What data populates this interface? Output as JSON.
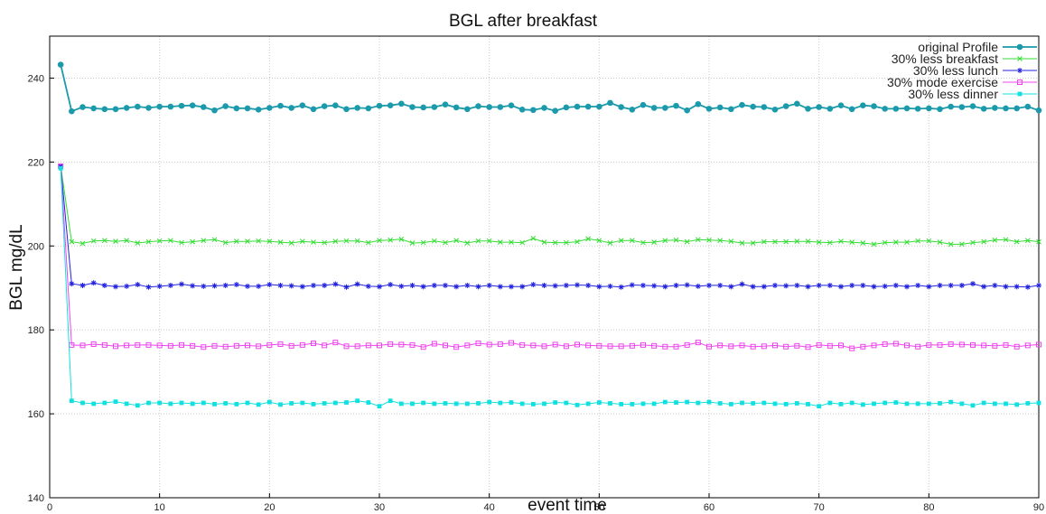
{
  "chart_data": {
    "type": "line",
    "title": "BGL after breakfast",
    "xlabel": "event time",
    "ylabel": "BGL mg/dL",
    "xlim": [
      0,
      90
    ],
    "ylim": [
      140,
      250
    ],
    "xticks": [
      0,
      10,
      20,
      30,
      40,
      50,
      60,
      70,
      80,
      90
    ],
    "yticks": [
      140,
      160,
      180,
      200,
      220,
      240
    ],
    "grid": true,
    "legend_position": "top-right",
    "series": [
      {
        "name": "original Profile",
        "color": "#1a9aaa",
        "marker": "circle",
        "x": [
          1,
          2,
          3,
          4,
          5,
          6,
          7,
          8,
          9,
          10,
          11,
          12,
          13,
          14,
          15,
          16,
          17,
          18,
          19,
          20,
          21,
          22,
          23,
          24,
          25,
          26,
          27,
          28,
          29,
          30,
          31,
          32,
          33,
          34,
          35,
          36,
          37,
          38,
          39,
          40,
          41,
          42,
          43,
          44,
          45,
          46,
          47,
          48,
          49,
          50,
          51,
          52,
          53,
          54,
          55,
          56,
          57,
          58,
          59,
          60,
          61,
          62,
          63,
          64,
          65,
          66,
          67,
          68,
          69,
          70,
          71,
          72,
          73,
          74,
          75,
          76,
          77,
          78,
          79,
          80,
          81,
          82,
          83,
          84,
          85,
          86,
          87,
          88,
          89,
          90
        ],
        "values": [
          243.2,
          232.1,
          233.1,
          232.8,
          232.6,
          232.6,
          232.9,
          233.2,
          232.9,
          233.2,
          233.2,
          233.4,
          233.5,
          233.1,
          232.3,
          233.3,
          232.8,
          232.8,
          232.5,
          232.9,
          233.4,
          232.9,
          233.5,
          232.6,
          233.3,
          233.5,
          232.6,
          232.9,
          232.8,
          233.4,
          233.5,
          233.9,
          233.1,
          233.0,
          233.1,
          233.7,
          233.0,
          232.6,
          233.3,
          233.1,
          233.1,
          233.5,
          232.5,
          232.4,
          232.9,
          232.2,
          233.0,
          233.2,
          233.2,
          233.2,
          234.1,
          233.1,
          232.5,
          233.6,
          232.9,
          232.9,
          233.4,
          232.3,
          233.8,
          232.7,
          233.0,
          232.6,
          233.6,
          233.2,
          233.1,
          232.5,
          233.3,
          233.9,
          232.7,
          233.1,
          232.7,
          233.5,
          232.6,
          233.5,
          233.3,
          232.7,
          232.7,
          232.8,
          232.7,
          232.8,
          232.6,
          233.2,
          233.1,
          233.3,
          232.7,
          232.9,
          232.8,
          232.8,
          233.2,
          232.3
        ]
      },
      {
        "name": "30% less breakfast",
        "color": "#33dd33",
        "marker": "x",
        "x": [
          1,
          2,
          3,
          4,
          5,
          6,
          7,
          8,
          9,
          10,
          11,
          12,
          13,
          14,
          15,
          16,
          17,
          18,
          19,
          20,
          21,
          22,
          23,
          24,
          25,
          26,
          27,
          28,
          29,
          30,
          31,
          32,
          33,
          34,
          35,
          36,
          37,
          38,
          39,
          40,
          41,
          42,
          43,
          44,
          45,
          46,
          47,
          48,
          49,
          50,
          51,
          52,
          53,
          54,
          55,
          56,
          57,
          58,
          59,
          60,
          61,
          62,
          63,
          64,
          65,
          66,
          67,
          68,
          69,
          70,
          71,
          72,
          73,
          74,
          75,
          76,
          77,
          78,
          79,
          80,
          81,
          82,
          83,
          84,
          85,
          86,
          87,
          88,
          89,
          90
        ],
        "values": [
          219.0,
          201.0,
          200.6,
          201.2,
          201.3,
          201.1,
          201.3,
          200.7,
          201.0,
          201.2,
          201.3,
          200.8,
          201.0,
          201.3,
          201.5,
          200.8,
          201.1,
          201.1,
          201.2,
          201.1,
          200.9,
          200.7,
          201.1,
          200.9,
          200.8,
          201.1,
          201.2,
          201.2,
          200.8,
          201.3,
          201.4,
          201.6,
          200.7,
          200.8,
          201.2,
          200.8,
          201.3,
          200.7,
          201.2,
          201.2,
          200.9,
          200.9,
          200.8,
          201.8,
          200.9,
          200.8,
          200.8,
          201.0,
          201.7,
          201.3,
          200.7,
          201.3,
          201.3,
          200.8,
          200.9,
          201.3,
          201.4,
          201.0,
          201.5,
          201.4,
          201.3,
          201.1,
          200.7,
          200.7,
          201.0,
          201.0,
          201.0,
          201.1,
          201.1,
          200.9,
          200.8,
          201.1,
          200.9,
          200.7,
          200.4,
          200.8,
          200.9,
          200.9,
          201.2,
          201.2,
          200.9,
          200.4,
          200.4,
          200.8,
          201.0,
          201.4,
          201.5,
          201.0,
          201.3,
          201.0
        ]
      },
      {
        "name": "30% less lunch",
        "color": "#2222dd",
        "marker": "star",
        "x": [
          1,
          2,
          3,
          4,
          5,
          6,
          7,
          8,
          9,
          10,
          11,
          12,
          13,
          14,
          15,
          16,
          17,
          18,
          19,
          20,
          21,
          22,
          23,
          24,
          25,
          26,
          27,
          28,
          29,
          30,
          31,
          32,
          33,
          34,
          35,
          36,
          37,
          38,
          39,
          40,
          41,
          42,
          43,
          44,
          45,
          46,
          47,
          48,
          49,
          50,
          51,
          52,
          53,
          54,
          55,
          56,
          57,
          58,
          59,
          60,
          61,
          62,
          63,
          64,
          65,
          66,
          67,
          68,
          69,
          70,
          71,
          72,
          73,
          74,
          75,
          76,
          77,
          78,
          79,
          80,
          81,
          82,
          83,
          84,
          85,
          86,
          87,
          88,
          89,
          90
        ],
        "values": [
          219.0,
          191.0,
          190.6,
          191.2,
          190.6,
          190.3,
          190.4,
          190.8,
          190.2,
          190.4,
          190.6,
          190.9,
          190.5,
          190.4,
          190.5,
          190.6,
          190.8,
          190.4,
          190.4,
          190.8,
          190.6,
          190.5,
          190.3,
          190.6,
          190.6,
          190.9,
          190.2,
          190.9,
          190.4,
          190.3,
          190.8,
          190.4,
          190.6,
          190.3,
          190.6,
          190.6,
          190.3,
          190.6,
          190.3,
          190.6,
          190.3,
          190.3,
          190.3,
          190.8,
          190.6,
          190.5,
          190.6,
          190.7,
          190.6,
          190.3,
          190.4,
          190.2,
          190.7,
          190.6,
          190.5,
          190.3,
          190.6,
          190.7,
          190.4,
          190.6,
          190.6,
          190.3,
          190.9,
          190.3,
          190.3,
          190.6,
          190.5,
          190.6,
          190.3,
          190.6,
          190.6,
          190.3,
          190.6,
          190.6,
          190.3,
          190.4,
          190.6,
          190.3,
          190.6,
          190.3,
          190.6,
          190.6,
          190.6,
          191.0,
          190.3,
          190.6,
          190.3,
          190.3,
          190.2,
          190.6
        ]
      },
      {
        "name": "30% mode exercise",
        "color": "#ee44ee",
        "marker": "square",
        "x": [
          1,
          2,
          3,
          4,
          5,
          6,
          7,
          8,
          9,
          10,
          11,
          12,
          13,
          14,
          15,
          16,
          17,
          18,
          19,
          20,
          21,
          22,
          23,
          24,
          25,
          26,
          27,
          28,
          29,
          30,
          31,
          32,
          33,
          34,
          35,
          36,
          37,
          38,
          39,
          40,
          41,
          42,
          43,
          44,
          45,
          46,
          47,
          48,
          49,
          50,
          51,
          52,
          53,
          54,
          55,
          56,
          57,
          58,
          59,
          60,
          61,
          62,
          63,
          64,
          65,
          66,
          67,
          68,
          69,
          70,
          71,
          72,
          73,
          74,
          75,
          76,
          77,
          78,
          79,
          80,
          81,
          82,
          83,
          84,
          85,
          86,
          87,
          88,
          89,
          90
        ],
        "values": [
          219.0,
          176.4,
          176.3,
          176.6,
          176.4,
          176.1,
          176.3,
          176.4,
          176.4,
          176.3,
          176.2,
          176.4,
          176.2,
          175.9,
          176.2,
          176.0,
          176.2,
          176.3,
          176.1,
          176.4,
          176.6,
          176.2,
          176.4,
          176.8,
          176.3,
          177.0,
          176.1,
          176.1,
          176.3,
          176.3,
          176.6,
          176.5,
          176.4,
          175.9,
          176.7,
          176.3,
          175.9,
          176.3,
          176.8,
          176.5,
          176.6,
          176.9,
          176.4,
          176.3,
          176.1,
          176.5,
          176.1,
          176.5,
          176.3,
          176.2,
          176.1,
          176.1,
          176.2,
          176.4,
          176.2,
          176.0,
          176.0,
          176.4,
          177.0,
          176.0,
          176.3,
          176.1,
          176.3,
          176.0,
          176.1,
          176.3,
          176.0,
          176.2,
          175.9,
          176.4,
          176.2,
          176.3,
          175.6,
          176.0,
          176.3,
          176.6,
          176.7,
          176.3,
          176.0,
          176.4,
          176.4,
          176.6,
          176.5,
          176.4,
          176.3,
          176.2,
          176.4,
          176.0,
          176.3,
          176.5
        ]
      },
      {
        "name": "30% less dinner",
        "color": "#11e0e0",
        "marker": "filled-square",
        "x": [
          1,
          2,
          3,
          4,
          5,
          6,
          7,
          8,
          9,
          10,
          11,
          12,
          13,
          14,
          15,
          16,
          17,
          18,
          19,
          20,
          21,
          22,
          23,
          24,
          25,
          26,
          27,
          28,
          29,
          30,
          31,
          32,
          33,
          34,
          35,
          36,
          37,
          38,
          39,
          40,
          41,
          42,
          43,
          44,
          45,
          46,
          47,
          48,
          49,
          50,
          51,
          52,
          53,
          54,
          55,
          56,
          57,
          58,
          59,
          60,
          61,
          62,
          63,
          64,
          65,
          66,
          67,
          68,
          69,
          70,
          71,
          72,
          73,
          74,
          75,
          76,
          77,
          78,
          79,
          80,
          81,
          82,
          83,
          84,
          85,
          86,
          87,
          88,
          89,
          90
        ],
        "values": [
          218.5,
          163.1,
          162.6,
          162.4,
          162.6,
          162.9,
          162.4,
          162.0,
          162.6,
          162.6,
          162.4,
          162.6,
          162.4,
          162.6,
          162.3,
          162.5,
          162.3,
          162.6,
          162.2,
          162.8,
          162.2,
          162.5,
          162.6,
          162.3,
          162.5,
          162.6,
          162.7,
          163.1,
          162.7,
          161.8,
          163.1,
          162.4,
          162.4,
          162.6,
          162.4,
          162.5,
          162.4,
          162.4,
          162.5,
          162.8,
          162.6,
          162.7,
          162.4,
          162.3,
          162.4,
          162.7,
          162.6,
          162.1,
          162.4,
          162.7,
          162.5,
          162.3,
          162.3,
          162.4,
          162.4,
          162.8,
          162.7,
          162.8,
          162.6,
          162.8,
          162.5,
          162.3,
          162.6,
          162.5,
          162.6,
          162.4,
          162.3,
          162.5,
          162.3,
          161.8,
          162.6,
          162.3,
          162.6,
          162.2,
          162.4,
          162.6,
          162.7,
          162.4,
          162.4,
          162.4,
          162.5,
          162.8,
          162.4,
          162.0,
          162.6,
          162.4,
          162.4,
          162.2,
          162.5,
          162.6
        ]
      }
    ]
  }
}
